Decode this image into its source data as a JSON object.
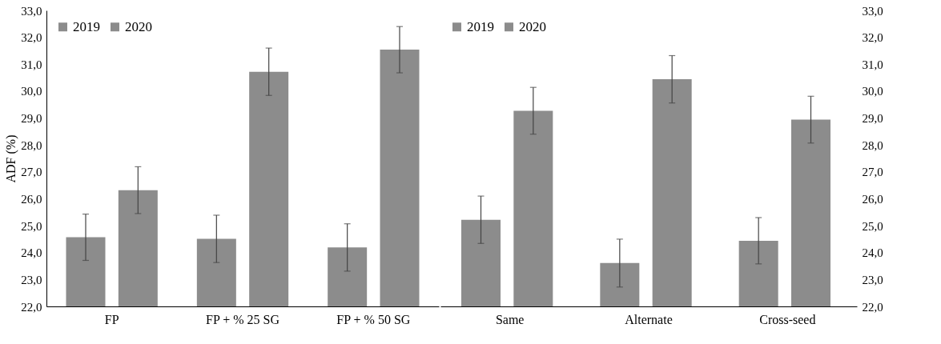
{
  "chart_data": [
    {
      "type": "bar",
      "ylabel": "ADF (%)",
      "categories": [
        "FP",
        "FP + % 25 SG",
        "FP + % 50 SG"
      ],
      "series": [
        {
          "name": "2019",
          "color": "#8c8c8c",
          "values": [
            24.57,
            24.51,
            24.19
          ],
          "errors": [
            0.86,
            0.88,
            0.88
          ]
        },
        {
          "name": "2020",
          "color": "#8c8c8c",
          "values": [
            26.32,
            30.72,
            31.54
          ],
          "errors": [
            0.87,
            0.88,
            0.86
          ]
        }
      ],
      "ylim": [
        22,
        33
      ],
      "yticks": [
        {
          "value": 22,
          "label": "22,0"
        },
        {
          "value": 23,
          "label": "23,0"
        },
        {
          "value": 24,
          "label": "24,0"
        },
        {
          "value": 25,
          "label": "25,0"
        },
        {
          "value": 26,
          "label": "26,0"
        },
        {
          "value": 27,
          "label": "27,0"
        },
        {
          "value": 28,
          "label": "28,0"
        },
        {
          "value": 29,
          "label": "29,0"
        },
        {
          "value": 30,
          "label": "30,0"
        },
        {
          "value": 31,
          "label": "31,0"
        },
        {
          "value": 32,
          "label": "32,0"
        },
        {
          "value": 33,
          "label": "33,0"
        }
      ],
      "legend": "top left",
      "grid": false
    },
    {
      "type": "bar",
      "categories": [
        "Same",
        "Alternate",
        "Cross-seed"
      ],
      "series": [
        {
          "name": "2019",
          "color": "#8c8c8c",
          "axis": "y2",
          "values": [
            25.22,
            23.61,
            24.44
          ],
          "errors": [
            0.88,
            0.89,
            0.86
          ]
        },
        {
          "name": "2020",
          "color": "#8c8c8c",
          "axis": "y2",
          "values": [
            29.27,
            30.44,
            28.94
          ],
          "errors": [
            0.87,
            0.88,
            0.87
          ]
        }
      ],
      "y2lim": [
        22,
        33
      ],
      "y2ticks": [
        {
          "value": 22,
          "label": "22,0"
        },
        {
          "value": 23,
          "label": "23,0"
        },
        {
          "value": 24,
          "label": "24,0"
        },
        {
          "value": 25,
          "label": "25,0"
        },
        {
          "value": 26,
          "label": "26,0"
        },
        {
          "value": 27,
          "label": "27,0"
        },
        {
          "value": 28,
          "label": "28,0"
        },
        {
          "value": 29,
          "label": "29,0"
        },
        {
          "value": 30,
          "label": "30,0"
        },
        {
          "value": 31,
          "label": "31,0"
        },
        {
          "value": 32,
          "label": "32,0"
        },
        {
          "value": 33,
          "label": "33,0"
        }
      ],
      "legend": "top left",
      "grid": false
    }
  ]
}
